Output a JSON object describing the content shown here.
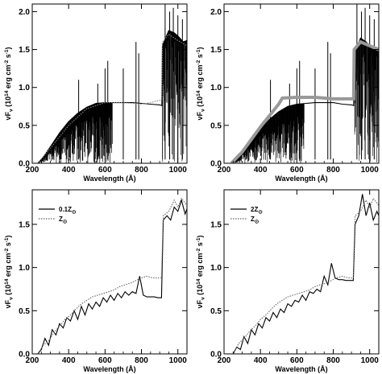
{
  "chart_data": [
    {
      "type": "line",
      "panel": "top-left",
      "xlabel": "Wavelength (Å)",
      "ylabel": "νF_ν (10^14 erg cm^-2 s^-1)",
      "xlim": [
        200,
        1050
      ],
      "ylim": [
        0,
        2.1
      ],
      "xticks": [
        "200",
        "400",
        "600",
        "800",
        "1000"
      ],
      "yticks": [
        "0.0",
        "0.5",
        "1.0",
        "1.5",
        "2.0"
      ],
      "series": [
        {
          "color": "#000000",
          "style": "solid",
          "x": [
            230,
            260,
            300,
            350,
            400,
            450,
            500,
            550,
            600,
            650,
            700,
            750,
            800,
            850,
            900,
            912,
            915,
            950,
            980,
            1000,
            1030,
            1050
          ],
          "y": [
            0.0,
            0.08,
            0.22,
            0.4,
            0.55,
            0.66,
            0.74,
            0.79,
            0.8,
            0.8,
            0.8,
            0.8,
            0.79,
            0.78,
            0.77,
            0.76,
            1.55,
            1.75,
            1.72,
            1.68,
            1.6,
            1.62
          ]
        },
        {
          "color": "#888888",
          "style": "dotted",
          "x": [
            230,
            300,
            400,
            500,
            600,
            700,
            800,
            850,
            900,
            912,
            915,
            950,
            1000,
            1050
          ],
          "y": [
            0.0,
            0.2,
            0.5,
            0.72,
            0.8,
            0.8,
            0.78,
            0.8,
            0.83,
            0.85,
            1.6,
            1.7,
            1.62,
            1.55
          ]
        }
      ]
    },
    {
      "type": "line",
      "panel": "top-right",
      "xlabel": "Wavelength (Å)",
      "ylabel": "νF_ν (10^14 erg cm^-2 s^-1)",
      "xlim": [
        200,
        1050
      ],
      "ylim": [
        0,
        2.1
      ],
      "xticks": [
        "200",
        "400",
        "600",
        "800",
        "1000"
      ],
      "yticks": [
        "0.0",
        "0.5",
        "1.0",
        "1.5",
        "2.0"
      ],
      "series": [
        {
          "color": "#000000",
          "style": "solid",
          "x": [
            240,
            270,
            300,
            350,
            400,
            450,
            500,
            550,
            600,
            650,
            700,
            750,
            800,
            850,
            900,
            912,
            915,
            950,
            980,
            1000,
            1030,
            1050
          ],
          "y": [
            0.0,
            0.05,
            0.15,
            0.3,
            0.45,
            0.58,
            0.68,
            0.75,
            0.78,
            0.79,
            0.8,
            0.8,
            0.8,
            0.78,
            0.77,
            0.76,
            1.45,
            1.65,
            1.6,
            1.55,
            1.5,
            1.48
          ]
        },
        {
          "color": "#999999",
          "style": "solid",
          "x": [
            240,
            300,
            400,
            500,
            520,
            600,
            700,
            800,
            900,
            912,
            915,
            950,
            1000,
            1050
          ],
          "y": [
            0.0,
            0.15,
            0.48,
            0.78,
            0.86,
            0.87,
            0.87,
            0.85,
            0.85,
            0.85,
            1.5,
            1.6,
            1.55,
            1.5
          ]
        }
      ]
    },
    {
      "type": "line",
      "panel": "bottom-left",
      "xlabel": "Wavelength (Å)",
      "ylabel": "νF_ν (10^14 erg cm^-2 s^-1)",
      "xlim": [
        200,
        1050
      ],
      "ylim": [
        0,
        1.9
      ],
      "xticks": [
        "200",
        "400",
        "600",
        "800",
        "1000"
      ],
      "yticks": [
        "0.0",
        "0.5",
        "1.0",
        "1.5"
      ],
      "legend": [
        "0.1Z_⊙",
        "Z_⊙"
      ],
      "series": [
        {
          "name": "0.1Z_⊙",
          "color": "#000000",
          "style": "solid",
          "x": [
            230,
            250,
            270,
            290,
            310,
            330,
            350,
            370,
            390,
            410,
            430,
            450,
            470,
            490,
            510,
            530,
            550,
            570,
            590,
            610,
            630,
            650,
            670,
            690,
            710,
            730,
            750,
            770,
            790,
            810,
            830,
            850,
            870,
            890,
            910,
            920,
            940,
            960,
            980,
            1000,
            1020,
            1040,
            1050
          ],
          "y": [
            0.0,
            0.05,
            0.18,
            0.1,
            0.28,
            0.22,
            0.35,
            0.3,
            0.42,
            0.38,
            0.5,
            0.4,
            0.55,
            0.45,
            0.58,
            0.52,
            0.6,
            0.55,
            0.65,
            0.6,
            0.68,
            0.62,
            0.7,
            0.65,
            0.72,
            0.68,
            0.72,
            0.7,
            0.9,
            0.68,
            0.66,
            0.66,
            0.66,
            0.65,
            0.65,
            1.55,
            1.6,
            1.55,
            1.7,
            1.65,
            1.78,
            1.62,
            1.68
          ]
        },
        {
          "name": "Z_⊙",
          "color": "#666666",
          "style": "dotted",
          "x": [
            230,
            260,
            290,
            320,
            350,
            380,
            410,
            440,
            470,
            500,
            530,
            560,
            590,
            620,
            650,
            680,
            710,
            740,
            770,
            800,
            830,
            860,
            890,
            910,
            920,
            950,
            980,
            1000,
            1020,
            1050
          ],
          "y": [
            0.0,
            0.1,
            0.15,
            0.25,
            0.32,
            0.4,
            0.45,
            0.52,
            0.58,
            0.62,
            0.66,
            0.68,
            0.7,
            0.72,
            0.74,
            0.78,
            0.8,
            0.82,
            0.85,
            0.88,
            0.9,
            0.88,
            0.88,
            0.88,
            1.6,
            1.65,
            1.78,
            1.7,
            1.8,
            1.72
          ]
        }
      ]
    },
    {
      "type": "line",
      "panel": "bottom-right",
      "xlabel": "Wavelength (Å)",
      "ylabel": "νF_ν (10^14 erg cm^-2 s^-1)",
      "xlim": [
        200,
        1050
      ],
      "ylim": [
        0,
        1.9
      ],
      "xticks": [
        "200",
        "400",
        "600",
        "800",
        "1000"
      ],
      "yticks": [
        "0.0",
        "0.5",
        "1.0",
        "1.5"
      ],
      "legend": [
        "2Z_⊙",
        "Z_⊙"
      ],
      "series": [
        {
          "name": "2Z_⊙",
          "color": "#000000",
          "style": "solid",
          "x": [
            250,
            270,
            290,
            310,
            330,
            350,
            370,
            390,
            410,
            430,
            450,
            470,
            490,
            510,
            530,
            550,
            570,
            590,
            610,
            630,
            650,
            670,
            690,
            710,
            730,
            750,
            770,
            790,
            810,
            830,
            850,
            870,
            890,
            910,
            920,
            940,
            960,
            980,
            1000,
            1020,
            1040,
            1050
          ],
          "y": [
            0.0,
            0.08,
            0.05,
            0.2,
            0.12,
            0.28,
            0.22,
            0.35,
            0.3,
            0.42,
            0.38,
            0.48,
            0.42,
            0.52,
            0.48,
            0.58,
            0.55,
            0.62,
            0.6,
            0.68,
            0.62,
            0.72,
            0.7,
            0.75,
            0.72,
            0.9,
            0.8,
            1.05,
            0.88,
            0.86,
            0.86,
            0.85,
            0.85,
            0.85,
            1.5,
            1.6,
            1.85,
            1.6,
            1.75,
            1.55,
            1.65,
            1.6
          ]
        },
        {
          "name": "Z_⊙",
          "color": "#666666",
          "style": "dotted",
          "x": [
            250,
            280,
            310,
            340,
            370,
            400,
            430,
            460,
            490,
            520,
            550,
            580,
            610,
            640,
            670,
            700,
            730,
            760,
            790,
            820,
            850,
            880,
            910,
            920,
            950,
            980,
            1000,
            1020,
            1050
          ],
          "y": [
            0.0,
            0.12,
            0.18,
            0.26,
            0.32,
            0.4,
            0.45,
            0.52,
            0.58,
            0.62,
            0.66,
            0.68,
            0.7,
            0.72,
            0.74,
            0.78,
            0.8,
            0.82,
            0.85,
            0.88,
            0.9,
            0.88,
            0.88,
            1.6,
            1.65,
            1.78,
            1.7,
            1.8,
            1.72
          ]
        }
      ]
    }
  ]
}
